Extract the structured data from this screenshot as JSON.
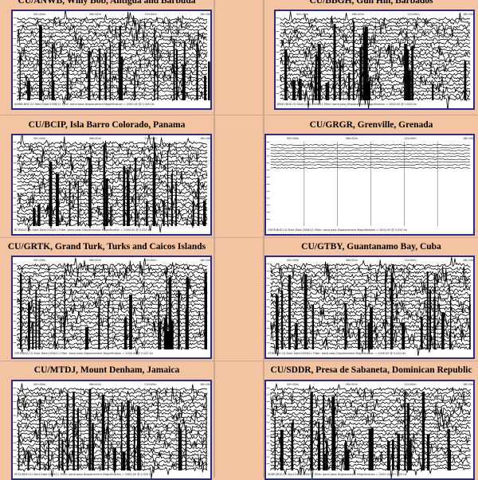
{
  "page_bg": "#f3c4a2",
  "frame_color": "#2b2b8c",
  "stations": [
    {
      "code_name": "CU/ANWB, Willy Bob, Antigua and Barbuda",
      "footer": "ANWB.BHZ.CU    Start Date:2006/11    Filter: band pass    Displacement Magnification =    2000.00 @ 0.020 Hz",
      "x_ticks": [
        "00h:00m",
        "06h:00m",
        "12h:00m",
        "18h:00m"
      ],
      "density": "high"
    },
    {
      "code_name": "CU/BBGH, Gun Hill, Barbados",
      "footer": "BBGH.BHZ.CU    Start Date:2006/11    Filter: band pass    Displacement Magnification =    2000.00 @ 0.020 Hz",
      "x_ticks": [
        "00h:00m",
        "06h:00m",
        "12h:00m",
        "18h:00m"
      ],
      "density": "high"
    },
    {
      "code_name": "CU/BCIP, Isla Barro Colorado, Panama",
      "footer": "BCIP.BHZ.CU    Start Date:2006/11    Filter: band pass    Displacement Magnification =    2000.00 @ 0.020 Hz",
      "x_ticks": [
        "00h:00m",
        "06h:00m",
        "12h:00m",
        "18h:00m"
      ],
      "density": "high"
    },
    {
      "code_name": "CU/GRGR, Grenville, Grenada",
      "footer": "GRGR.BHZ.CU    Start Date:2006/11    Filter: band pass    Displacement Magnification =    2000.00 @ 0.020 Hz",
      "x_ticks": [
        "00h:00m",
        "06h:00m",
        "12h:00m",
        "18h:00m"
      ],
      "density": "sparse"
    },
    {
      "code_name": "CU/GRTK, Grand Turk, Turks and Caicos Islands",
      "footer": "GRTK.BHZ.CU    Start Date:2006/11    Filter: band pass    Displacement Magnification =    2000.00 @ 0.020 Hz",
      "x_ticks": [
        "00h:00m",
        "06h:00m",
        "12h:00m",
        "18h:00m"
      ],
      "density": "high"
    },
    {
      "code_name": "CU/GTBY, Guantanamo Bay, Cuba",
      "footer": "GTBY.BHZ.CU    Start Date:2006/11    Filter: band pass    Displacement Magnification =    2000.00 @ 0.020 Hz",
      "x_ticks": [
        "00h:00m",
        "06h:00m",
        "12h:00m",
        "18h:00m"
      ],
      "density": "high"
    },
    {
      "code_name": "CU/MTDJ, Mount Denham, Jamaica",
      "footer": "MTDJ.BHZ.CU    Start Date:2006/11    Filter: band pass    Displacement Magnification =    2000.00 @ 0.020 Hz",
      "x_ticks": [
        "00h:00m",
        "06h:00m",
        "12h:00m",
        "18h:00m"
      ],
      "density": "high"
    },
    {
      "code_name": "CU/SDDR, Presa de Sabaneta, Dominican Republic",
      "footer": "SDDR.BHZ.CU    Start Date:2006/11    Filter: band pass    Displacement Magnification =    2000.00 @ 0.020 Hz",
      "x_ticks": [
        "00h:00m",
        "06h:00m",
        "12h:00m",
        "18h:00m"
      ],
      "density": "high"
    }
  ]
}
